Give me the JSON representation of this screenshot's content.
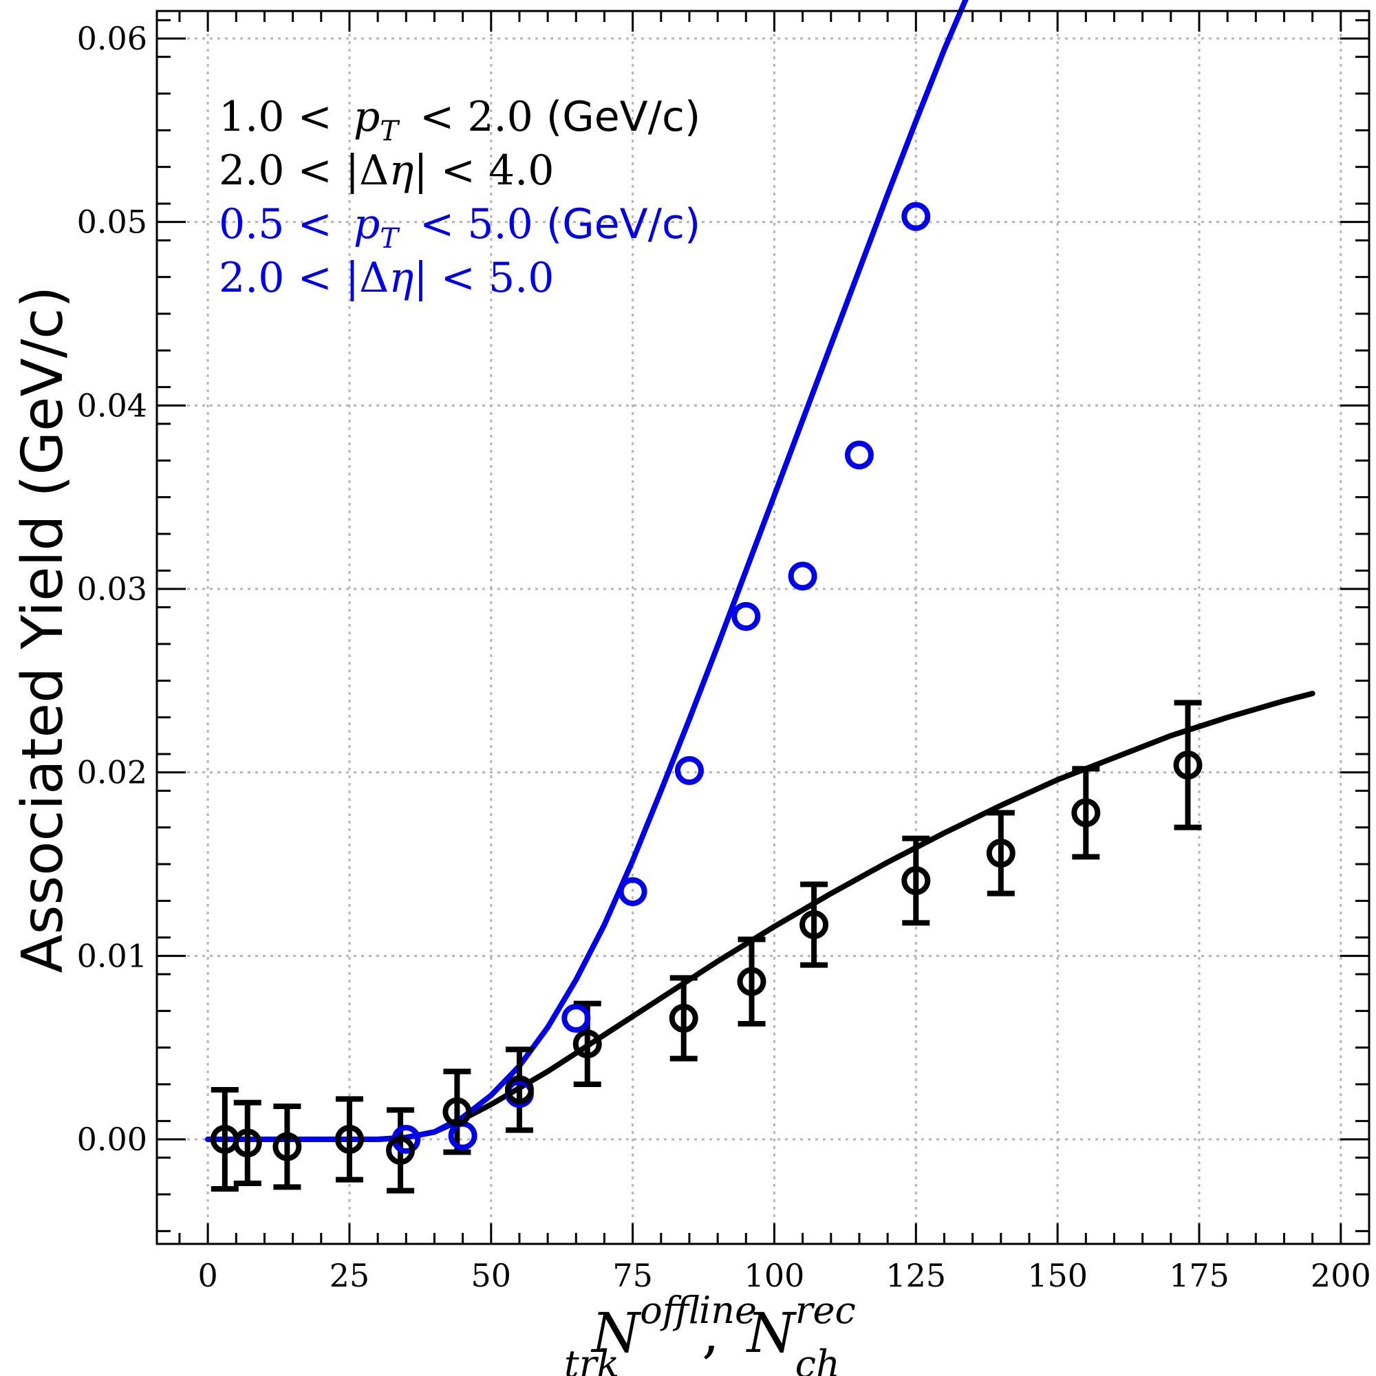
{
  "chart_data": {
    "type": "scatter",
    "title": "",
    "ylabel": "Associated Yield (GeV/c)",
    "xlabel": {
      "main_1": "N",
      "sup_1": "offline",
      "sub_1": "trk",
      "separator": ",",
      "main_2": "N",
      "sup_2": "rec",
      "sub_2": "ch"
    },
    "xlim": [
      -9,
      205
    ],
    "ylim": [
      -0.0057,
      0.0615
    ],
    "x_ticks": [
      0,
      25,
      50,
      75,
      100,
      125,
      150,
      175,
      200
    ],
    "x_tick_labels": [
      "0",
      "25",
      "50",
      "75",
      "100",
      "125",
      "150",
      "175",
      "200"
    ],
    "y_ticks": [
      0.0,
      0.01,
      0.02,
      0.03,
      0.04,
      0.05,
      0.06
    ],
    "y_tick_labels": [
      "0.00",
      "0.01",
      "0.02",
      "0.03",
      "0.04",
      "0.05",
      "0.06"
    ],
    "grid": true,
    "legend_position": "top-left",
    "annotations": [
      {
        "text": "1.0 < p_T < 2.0 (GeV/c)",
        "a": "1.0 <",
        "var": "p",
        "sub": "T",
        "b": "< 2.0",
        "unit": " (GeV/c)",
        "color": "#000000"
      },
      {
        "text": "2.0 < |Δη| < 4.0",
        "a": "2.0 < |Δ",
        "var": "η",
        "b": "| < 4.0",
        "color": "#000000"
      },
      {
        "text": "0.5 < p_T < 5.0 (GeV/c)",
        "a": "0.5 <",
        "var": "p",
        "sub": "T",
        "b": "< 5.0",
        "unit": " (GeV/c)",
        "color": "#0000ee"
      },
      {
        "text": "2.0 < |Δη| < 5.0",
        "a": "2.0 < |Δ",
        "var": "η",
        "b": "| < 5.0",
        "color": "#0000ee"
      }
    ],
    "series": [
      {
        "color": "#000000",
        "x": [
          3,
          7,
          14,
          25,
          34,
          44,
          55,
          67,
          84,
          96,
          107,
          125,
          140,
          155,
          173
        ],
        "y": [
          0.0,
          -0.0002,
          -0.0004,
          0.0,
          -0.0006,
          0.0015,
          0.0027,
          0.0052,
          0.0066,
          0.0086,
          0.0117,
          0.0141,
          0.0156,
          0.0178,
          0.0204
        ],
        "yerr": [
          0.0027,
          0.0022,
          0.0022,
          0.0022,
          0.0022,
          0.0022,
          0.0022,
          0.0022,
          0.0022,
          0.0023,
          0.0022,
          0.0023,
          0.0022,
          0.0024,
          0.0034
        ],
        "fit": {
          "x": [
            0,
            10,
            20,
            30,
            35,
            40,
            45,
            50,
            55,
            60,
            65,
            70,
            80,
            90,
            100,
            110,
            120,
            130,
            140,
            150,
            160,
            170,
            180,
            190,
            195
          ],
          "y": [
            0.0,
            0.0,
            0.0,
            0.0,
            0.0001,
            0.0004,
            0.0011,
            0.0019,
            0.0028,
            0.0037,
            0.0047,
            0.0057,
            0.0077,
            0.0097,
            0.0116,
            0.0134,
            0.0151,
            0.0167,
            0.0182,
            0.0196,
            0.0208,
            0.022,
            0.023,
            0.0239,
            0.0243
          ]
        }
      },
      {
        "color": "#0000ee",
        "x": [
          25,
          35,
          45,
          55,
          65,
          75,
          85,
          95,
          105,
          115,
          125
        ],
        "y": [
          0.0,
          0.0,
          0.0002,
          0.0025,
          0.0066,
          0.0135,
          0.0201,
          0.0285,
          0.0307,
          0.0373,
          0.0503
        ],
        "fit": {
          "x": [
            0,
            10,
            20,
            30,
            35,
            40,
            45,
            50,
            55,
            60,
            65,
            70,
            75,
            80,
            85,
            90,
            95,
            100,
            105,
            110,
            115,
            120,
            125,
            130,
            135
          ],
          "y": [
            0.0,
            0.0,
            0.0,
            0.0,
            0.0001,
            0.0004,
            0.0012,
            0.0024,
            0.004,
            0.0061,
            0.0087,
            0.0117,
            0.0152,
            0.019,
            0.0229,
            0.0269,
            0.031,
            0.0351,
            0.0392,
            0.0433,
            0.0474,
            0.0515,
            0.0555,
            0.0594,
            0.063
          ]
        }
      }
    ]
  }
}
